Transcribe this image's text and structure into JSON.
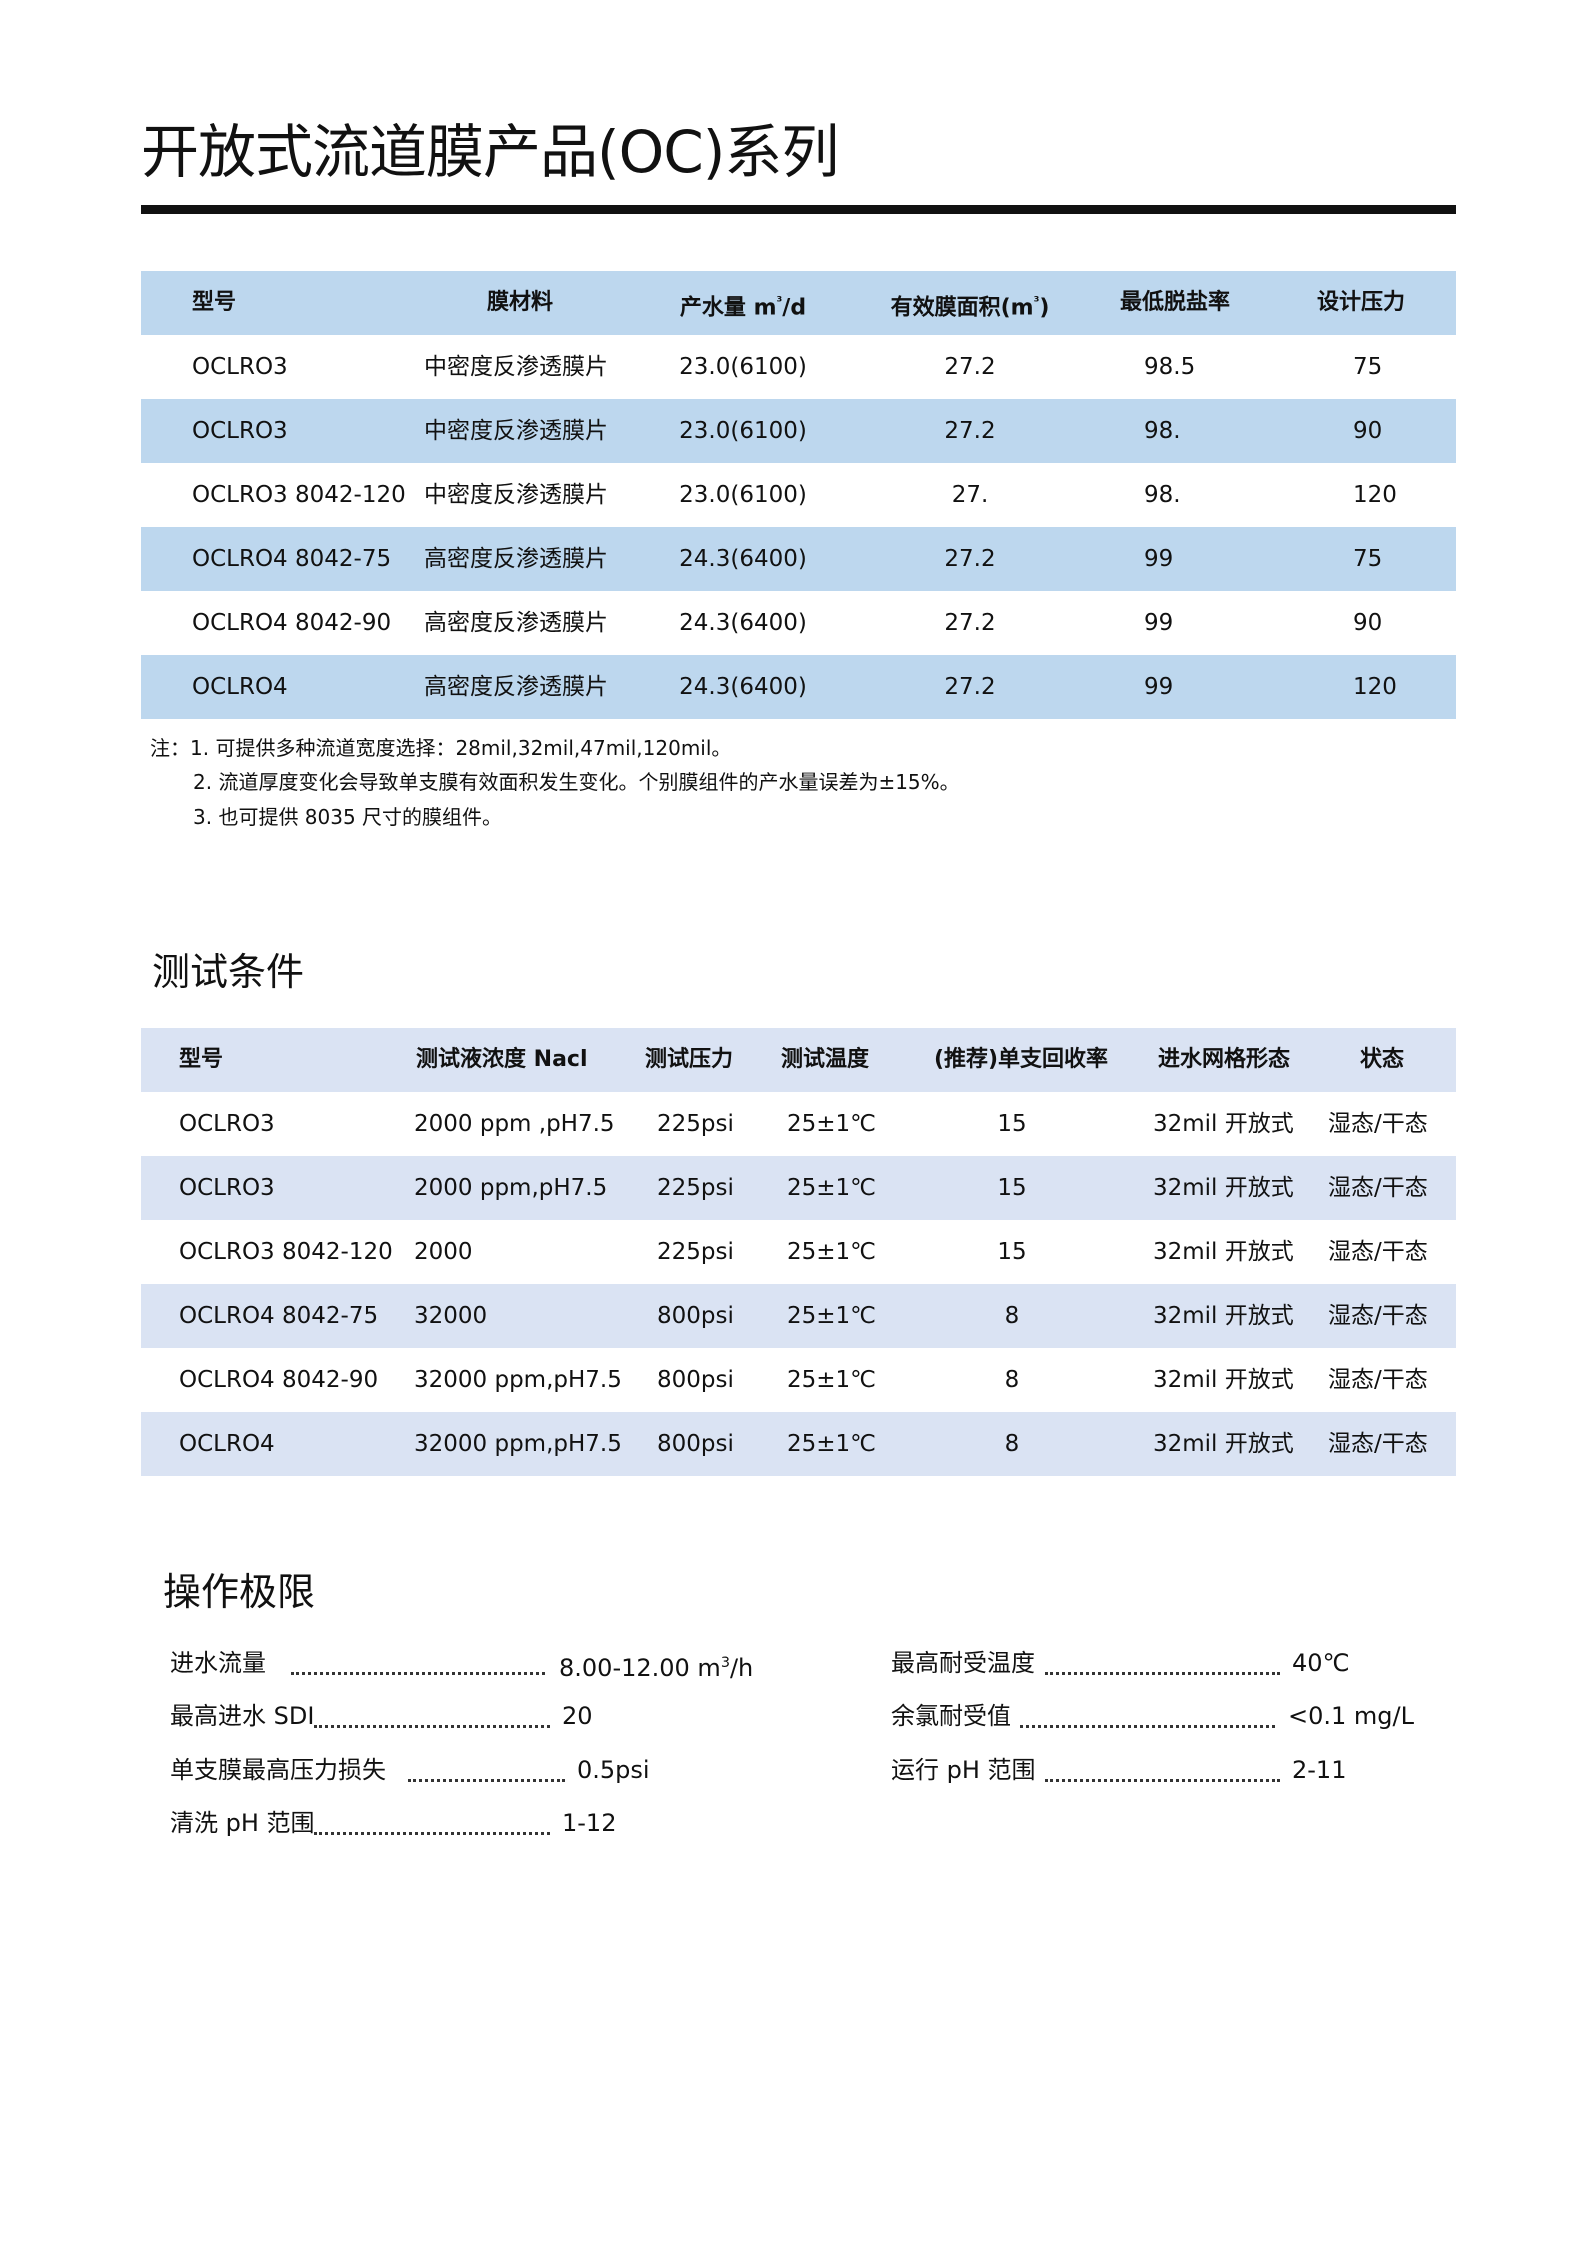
{
  "title": "开放式流道膜产品(OC)系列",
  "products": {
    "headers": [
      "型号",
      "膜材料",
      "产水量 m",
      "³",
      "/d",
      "有效膜面积(m",
      "³",
      ")",
      "最低脱盐率",
      "设计压力"
    ],
    "rows": [
      [
        "OCLRO3",
        "中密度反渗透膜片",
        "23.0(6100)",
        "27.2",
        "98.5",
        "75"
      ],
      [
        "OCLRO3",
        "中密度反渗透膜片",
        "23.0(6100)",
        "27.2",
        "98.",
        "90"
      ],
      [
        "OCLRO3 8042-120",
        "中密度反渗透膜片",
        "23.0(6100)",
        "27.",
        "98.",
        "120"
      ],
      [
        "OCLRO4 8042-75",
        "高密度反渗透膜片",
        "24.3(6400)",
        "27.2",
        "99",
        "75"
      ],
      [
        "OCLRO4 8042-90",
        "高密度反渗透膜片",
        "24.3(6400)",
        "27.2",
        "99",
        "90"
      ],
      [
        "OCLRO4",
        "高密度反渗透膜片",
        "24.3(6400)",
        "27.2",
        "99",
        "120"
      ]
    ],
    "row_color": "#bdd7ee"
  },
  "notes": [
    "注：1. 可提供多种流道宽度选择：28mil,32mil,47mil,120mil。",
    "2. 流道厚度变化会导致单支膜有效面积发生变化。个别膜组件的产水量误差为±15%。",
    "3. 也可提供 8035 尺寸的膜组件。"
  ],
  "test": {
    "heading": "测试条件",
    "headers": [
      "型号",
      "测试液浓度 Nacl",
      "测试压力",
      "测试温度",
      "(推荐)单支回收率",
      "进水网格形态",
      "状态"
    ],
    "rows": [
      [
        "OCLRO3",
        "2000 ppm ,pH7.5",
        "225psi",
        "25±1℃",
        "15",
        "32mil 开放式",
        "湿态/干态"
      ],
      [
        "OCLRO3",
        "2000 ppm,pH7.5",
        "225psi",
        "25±1℃",
        "15",
        "32mil 开放式",
        "湿态/干态"
      ],
      [
        "OCLRO3 8042-120",
        "2000",
        "225psi",
        "25±1℃",
        "15",
        "32mil 开放式",
        "湿态/干态"
      ],
      [
        "OCLRO4 8042-75",
        "32000",
        "800psi",
        "25±1℃",
        "8",
        "32mil 开放式",
        "湿态/干态"
      ],
      [
        "OCLRO4 8042-90",
        "32000 ppm,pH7.5",
        "800psi",
        "25±1℃",
        "8",
        "32mil 开放式",
        "湿态/干态"
      ],
      [
        "OCLRO4",
        "32000 ppm,pH7.5",
        "800psi",
        "25±1℃",
        "8",
        "32mil 开放式",
        "湿态/干态"
      ]
    ],
    "row_color": "#dae3f3"
  },
  "limits": {
    "heading": "操作极限",
    "left": [
      {
        "label": "进水流量",
        "value": "8.00-12.00 m",
        "sup": "3",
        "unit": "/h"
      },
      {
        "label": "最高进水 SDI",
        "value": "20"
      },
      {
        "label": "单支膜最高压力损失",
        "value": "0.5psi"
      },
      {
        "label": "清洗 pH 范围",
        "value": "1-12"
      }
    ],
    "right": [
      {
        "label": "最高耐受温度",
        "value": "40℃"
      },
      {
        "label": "余氯耐受值",
        "value": "<0.1 mg/L"
      },
      {
        "label": "运行 pH 范围",
        "value": "2-11"
      }
    ]
  }
}
